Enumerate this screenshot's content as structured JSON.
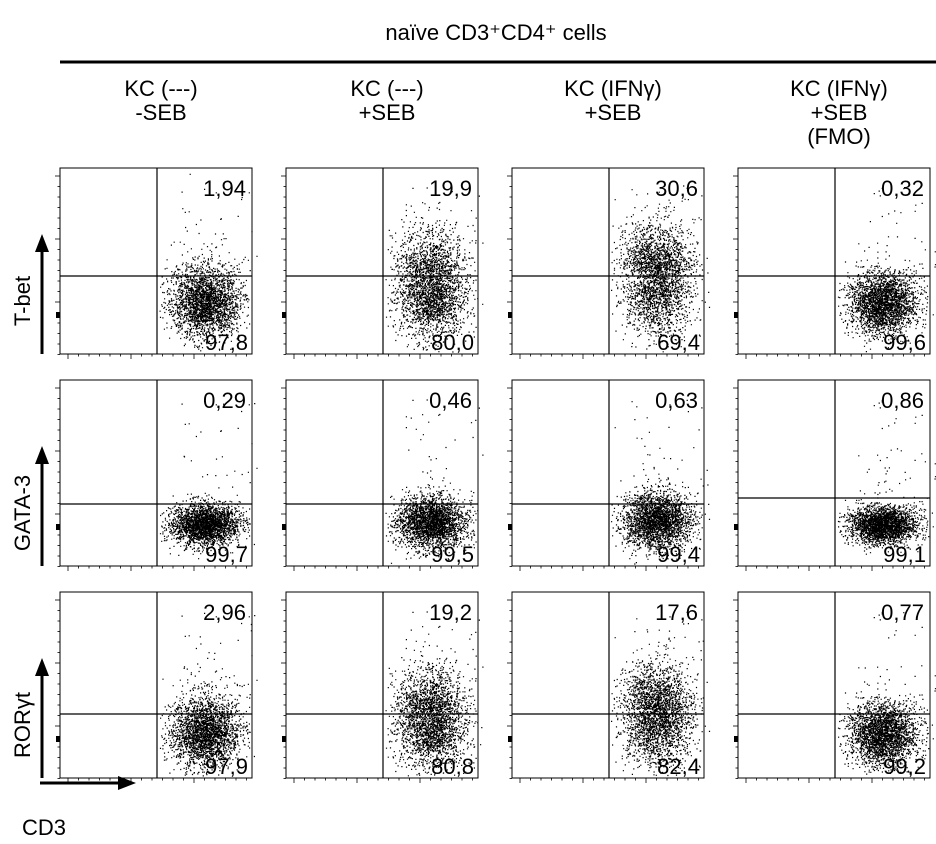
{
  "figure": {
    "header": "naïve CD3⁺CD4⁺ cells",
    "x_axis_label": "CD3"
  },
  "chart_data": {
    "type": "scatter",
    "columns": [
      {
        "line1": "KC (---)",
        "line2": "-SEB",
        "line3": ""
      },
      {
        "line1": "KC (---)",
        "line2": "+SEB",
        "line3": ""
      },
      {
        "line1": "KC (IFNγ)",
        "line2": "+SEB",
        "line3": ""
      },
      {
        "line1": "KC (IFNγ)",
        "line2": "+SEB",
        "line3": "(FMO)"
      }
    ],
    "rows": [
      {
        "marker": "T-bet",
        "upper_pct": [
          "1,94",
          "19,9",
          "30,6",
          "0,32"
        ],
        "lower_pct": [
          "97,8",
          "80,0",
          "69,4",
          "99,6"
        ]
      },
      {
        "marker": "GATA-3",
        "upper_pct": [
          "0,29",
          "0,46",
          "0,63",
          "0,86"
        ],
        "lower_pct": [
          "99,7",
          "99,5",
          "99,4",
          "99,1"
        ]
      },
      {
        "marker": "RORγt",
        "upper_pct": [
          "2,96",
          "19,2",
          "17,6",
          "0,77"
        ],
        "lower_pct": [
          "97,9",
          "80,8",
          "82,4",
          "99,2"
        ]
      }
    ]
  }
}
